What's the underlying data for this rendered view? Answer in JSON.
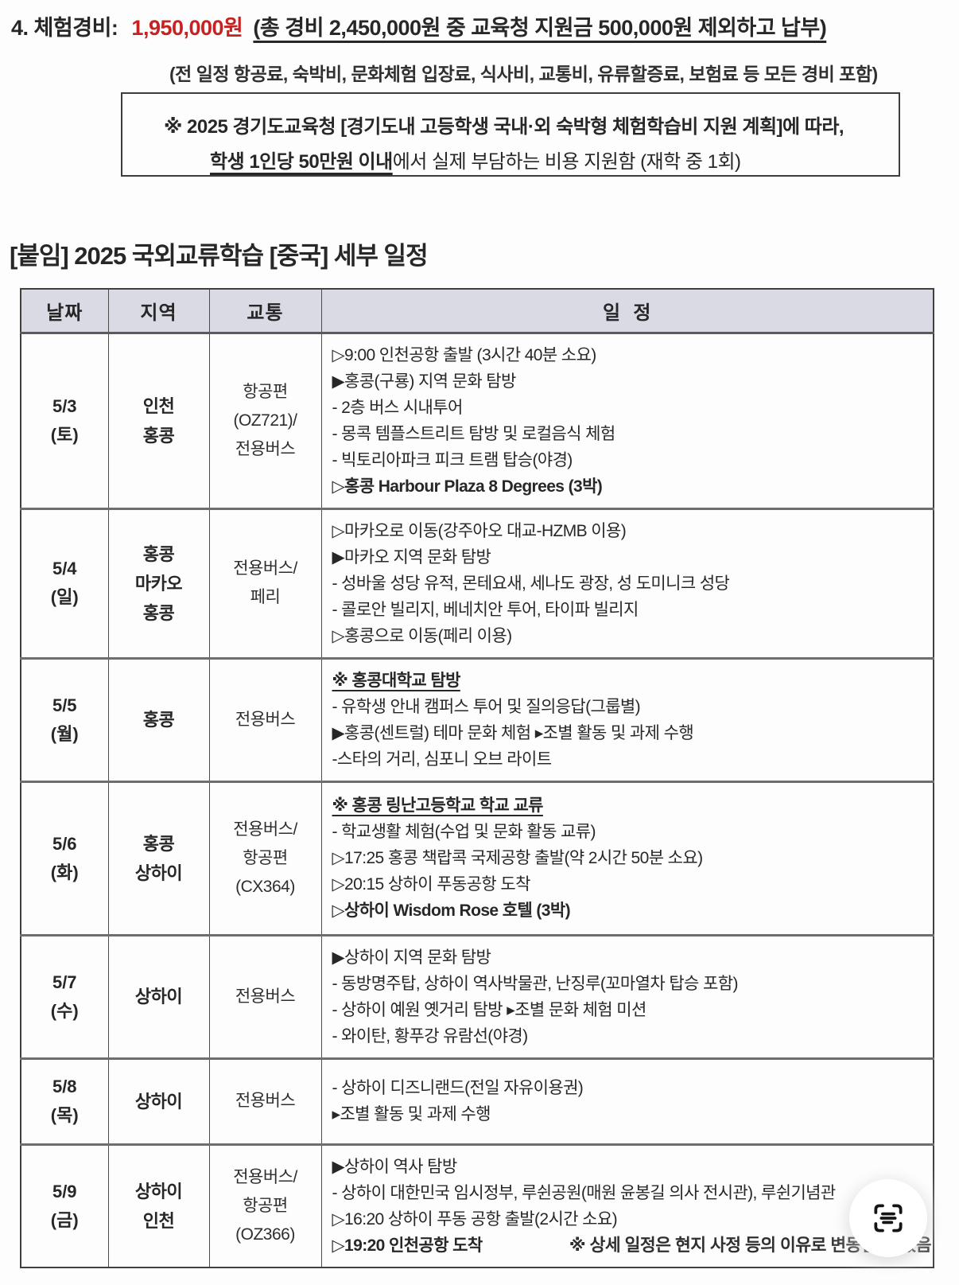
{
  "colors": {
    "accent_red": "#c62222",
    "table_header_bg": "#dadae4",
    "border_dark": "#3f3f3f"
  },
  "cost_section": {
    "item_number": "4.",
    "item_label": "체험경비:",
    "amount": "1,950,000원",
    "amount_detail": "(총 경비 2,450,000원 중 교육청 지원금 500,000원 제외하고 납부)",
    "included_note": "(전 일정 항공료, 숙박비, 문화체험 입장료, 식사비, 교통비, 유류할증료, 보험료 등 모든 경비 포함)"
  },
  "support_box": {
    "line1": "※ 2025 경기도교육청 [경기도내 고등학생 국내·외 숙박형 체험학습비 지원 계획]에 따라,",
    "line2_underlined": "학생 1인당 50만원 이내",
    "line2_rest": "에서 실제 부담하는 비용 지원함 (재학 중 1회)"
  },
  "attachment": {
    "title": "[붙임] 2025 국외교류학습 [중국] 세부 일정",
    "table": {
      "columns": [
        "날짜",
        "지역",
        "교통",
        "일  정"
      ],
      "rows": [
        {
          "date": [
            "5/3",
            "(토)"
          ],
          "region": [
            "인천",
            "홍콩"
          ],
          "transport": [
            "항공편",
            "(OZ721)/",
            "전용버스"
          ],
          "schedule": [
            {
              "text": "▷9:00 인천공항 출발 (3시간 40분 소요)",
              "style": "normal"
            },
            {
              "text": "▶홍콩(구룡) 지역 문화 탐방",
              "style": "normal"
            },
            {
              "text": "- 2층 버스 시내투어",
              "style": "normal"
            },
            {
              "text": "- 몽콕 템플스트리트 탐방 및 로컬음식 체험",
              "style": "normal"
            },
            {
              "text": "- 빅토리아파크 피크 트램 탑승(야경)",
              "style": "normal"
            },
            {
              "text": "▷홍콩 Harbour Plaza 8 Degrees (3박)",
              "style": "bold"
            }
          ]
        },
        {
          "date": [
            "5/4",
            "(일)"
          ],
          "region": [
            "홍콩",
            "마카오",
            "홍콩"
          ],
          "transport": [
            "전용버스/",
            "페리"
          ],
          "schedule": [
            {
              "text": "▷마카오로 이동(강주아오 대교-HZMB 이용)",
              "style": "normal"
            },
            {
              "text": "▶마카오 지역 문화 탐방",
              "style": "normal"
            },
            {
              "text": "- 성바울 성당 유적, 몬테요새, 세나도 광장, 성 도미니크 성당",
              "style": "normal"
            },
            {
              "text": "- 콜로안 빌리지, 베네치안 투어, 타이파 빌리지",
              "style": "normal"
            },
            {
              "text": "▷홍콩으로 이동(페리 이용)",
              "style": "normal"
            }
          ]
        },
        {
          "date": [
            "5/5",
            "(월)"
          ],
          "region": [
            "홍콩"
          ],
          "transport": [
            "전용버스"
          ],
          "schedule": [
            {
              "text": "※ 홍콩대학교 탐방",
              "style": "head"
            },
            {
              "text": "- 유학생 안내 캠퍼스 투어 및 질의응답(그룹별)",
              "style": "normal"
            },
            {
              "text": "▶홍콩(센트럴) 테마 문화 체험 ▸조별 활동 및 과제 수행",
              "style": "normal"
            },
            {
              "text": "-스타의 거리, 심포니 오브 라이트",
              "style": "normal"
            }
          ]
        },
        {
          "date": [
            "5/6",
            "(화)"
          ],
          "region": [
            "홍콩",
            "상하이"
          ],
          "transport": [
            "전용버스/",
            "항공편",
            "(CX364)"
          ],
          "schedule": [
            {
              "text": "※ 홍콩 링난고등학교 학교 교류",
              "style": "head"
            },
            {
              "text": "- 학교생활 체험(수업 및 문화 활동 교류)",
              "style": "normal"
            },
            {
              "text": "▷17:25 홍콩 책랍콕 국제공항 출발(약 2시간 50분 소요)",
              "style": "normal"
            },
            {
              "text": "▷20:15 상하이 푸동공항 도착",
              "style": "normal"
            },
            {
              "text": "▷상하이 Wisdom Rose 호텔 (3박)",
              "style": "bold"
            }
          ]
        },
        {
          "date": [
            "5/7",
            "(수)"
          ],
          "region": [
            "상하이"
          ],
          "transport": [
            "전용버스"
          ],
          "schedule": [
            {
              "text": "▶상하이 지역 문화 탐방",
              "style": "normal"
            },
            {
              "text": "- 동방명주탑, 상하이 역사박물관, 난징루(꼬마열차 탑승 포함)",
              "style": "normal"
            },
            {
              "text": "- 상하이 예원 옛거리 탐방 ▸조별 문화 체험 미션",
              "style": "normal"
            },
            {
              "text": "- 와이탄, 황푸강 유람선(야경)",
              "style": "normal"
            }
          ]
        },
        {
          "date": [
            "5/8",
            "(목)"
          ],
          "region": [
            "상하이"
          ],
          "transport": [
            "전용버스"
          ],
          "schedule": [
            {
              "text": "- 상하이 디즈니랜드(전일 자유이용권)",
              "style": "normal"
            },
            {
              "text": "▸조별 활동 및 과제 수행",
              "style": "normal"
            }
          ]
        },
        {
          "date": [
            "5/9",
            "(금)"
          ],
          "region": [
            "상하이",
            "인천"
          ],
          "transport": [
            "전용버스/",
            "항공편",
            "(OZ366)"
          ],
          "schedule": [
            {
              "text": "▶상하이 역사 탐방",
              "style": "normal"
            },
            {
              "text": "- 상하이 대한민국 임시정부, 루쉰공원(매원 윤봉길 의사 전시관), 루쉰기념관",
              "style": "normal"
            },
            {
              "text": "▷16:20 상하이 푸동 공항 출발(2시간 소요)",
              "style": "normal"
            },
            {
              "text": "▷19:20 인천공항 도착",
              "style": "bold"
            }
          ]
        }
      ]
    },
    "footnote": "※ 상세 일정은 현지 사정 등의 이유로 변동될 수 있음"
  },
  "fab": {
    "icon": "text-scan"
  }
}
